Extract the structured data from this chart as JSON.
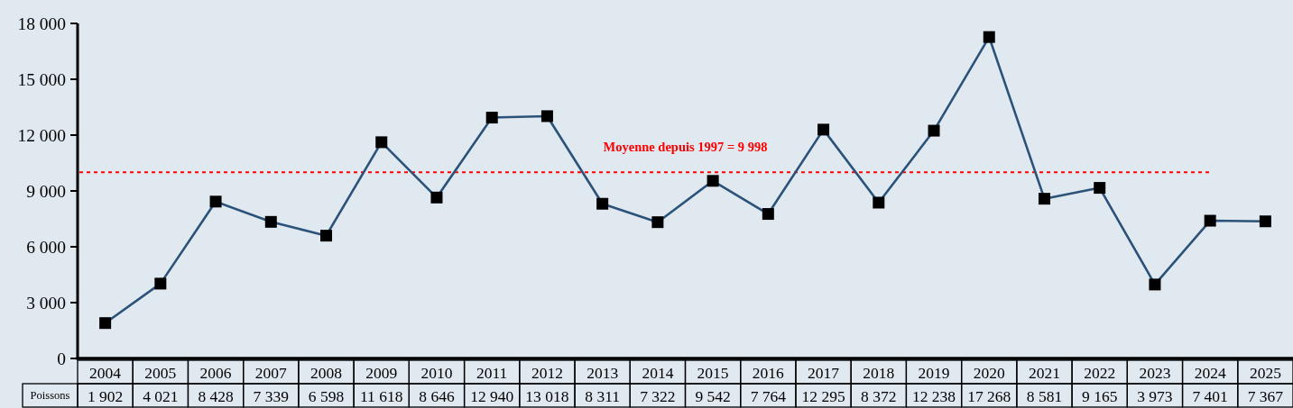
{
  "chart_data": {
    "type": "line",
    "categories": [
      "2004",
      "2005",
      "2006",
      "2007",
      "2008",
      "2009",
      "2010",
      "2011",
      "2012",
      "2013",
      "2014",
      "2015",
      "2016",
      "2017",
      "2018",
      "2019",
      "2020",
      "2021",
      "2022",
      "2023",
      "2024",
      "2025"
    ],
    "series": [
      {
        "name": "Poissons",
        "color": "#2b5278",
        "values": [
          1902,
          4021,
          8428,
          7339,
          6598,
          11618,
          8646,
          12940,
          13018,
          8311,
          7322,
          9542,
          7764,
          12295,
          8372,
          12238,
          17268,
          8581,
          9165,
          3973,
          7401,
          7367
        ],
        "value_labels": [
          "1 902",
          "4 021",
          "8 428",
          "7 339",
          "6 598",
          "11 618",
          "8 646",
          "12 940",
          "13 018",
          "8 311",
          "7 322",
          "9 542",
          "7 764",
          "12 295",
          "8 372",
          "12 238",
          "17 268",
          "8 581",
          "9 165",
          "3 973",
          "7 401",
          "7 367"
        ]
      }
    ],
    "ylim": [
      0,
      18000
    ],
    "yticks": [
      {
        "value": 0,
        "label": "0"
      },
      {
        "value": 3000,
        "label": "3 000"
      },
      {
        "value": 6000,
        "label": "6 000"
      },
      {
        "value": 9000,
        "label": "9 000"
      },
      {
        "value": 12000,
        "label": "12 000"
      },
      {
        "value": 15000,
        "label": "15 000"
      },
      {
        "value": 18000,
        "label": "18 000"
      }
    ],
    "ref_lines": [
      {
        "axis": "y",
        "value": 9998,
        "label": "Moyenne depuis 1997 = 9 998",
        "color": "#ff0000",
        "line_style": "dashed"
      }
    ],
    "marker": "square"
  }
}
